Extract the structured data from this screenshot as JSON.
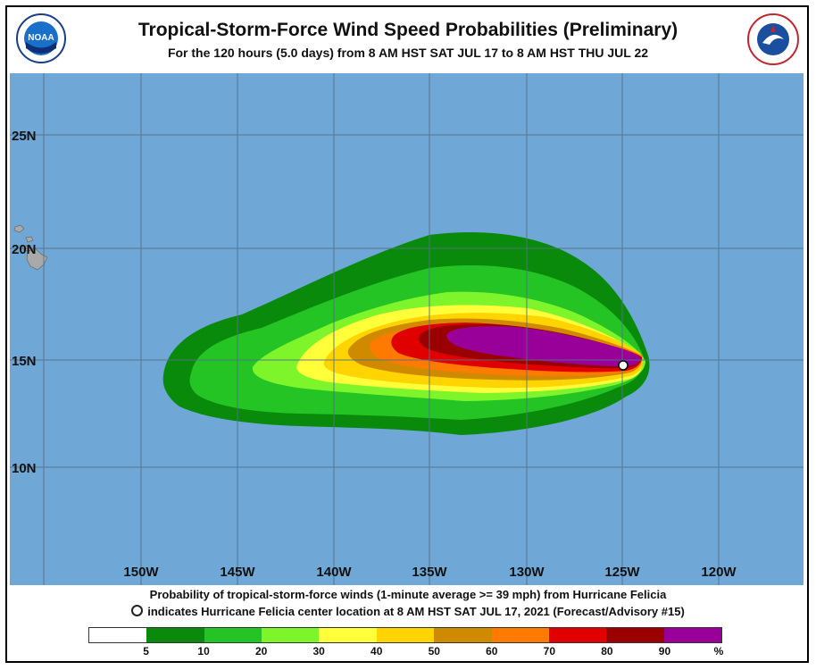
{
  "header": {
    "title": "Tropical-Storm-Force Wind Speed Probabilities (Preliminary)",
    "subtitle": "For the 120 hours (5.0 days) from 8 AM HST SAT JUL 17 to 8 AM HST THU JUL 22",
    "left_logo": "NOAA",
    "right_logo": "NATIONAL WEATHER SERVICE"
  },
  "map": {
    "ocean_color": "#6fa8d6",
    "land_color": "#a9a9a9",
    "grid_color": "#55708a",
    "lat_labels": [
      "25N",
      "20N",
      "15N",
      "10N"
    ],
    "lon_labels": [
      "150W",
      "145W",
      "140W",
      "135W",
      "130W",
      "125W",
      "120W"
    ],
    "storm_center": {
      "label": "Hurricane Felicia",
      "lat": 14.7,
      "lon": -124.9
    }
  },
  "caption": {
    "line1": "Probability of tropical-storm-force winds (1-minute average >= 39 mph) from Hurricane Felicia",
    "line2": "indicates Hurricane Felicia center location at 8 AM HST SAT JUL 17, 2021 (Forecast/Advisory #15)"
  },
  "legend": {
    "colors": [
      "#ffffff",
      "#0a8a0a",
      "#25c425",
      "#7df52a",
      "#ffff3a",
      "#ffd400",
      "#d08a00",
      "#ff7a00",
      "#e00000",
      "#9a0000",
      "#990099"
    ],
    "labels": [
      "5",
      "10",
      "20",
      "30",
      "40",
      "50",
      "60",
      "70",
      "80",
      "90",
      "%"
    ]
  }
}
